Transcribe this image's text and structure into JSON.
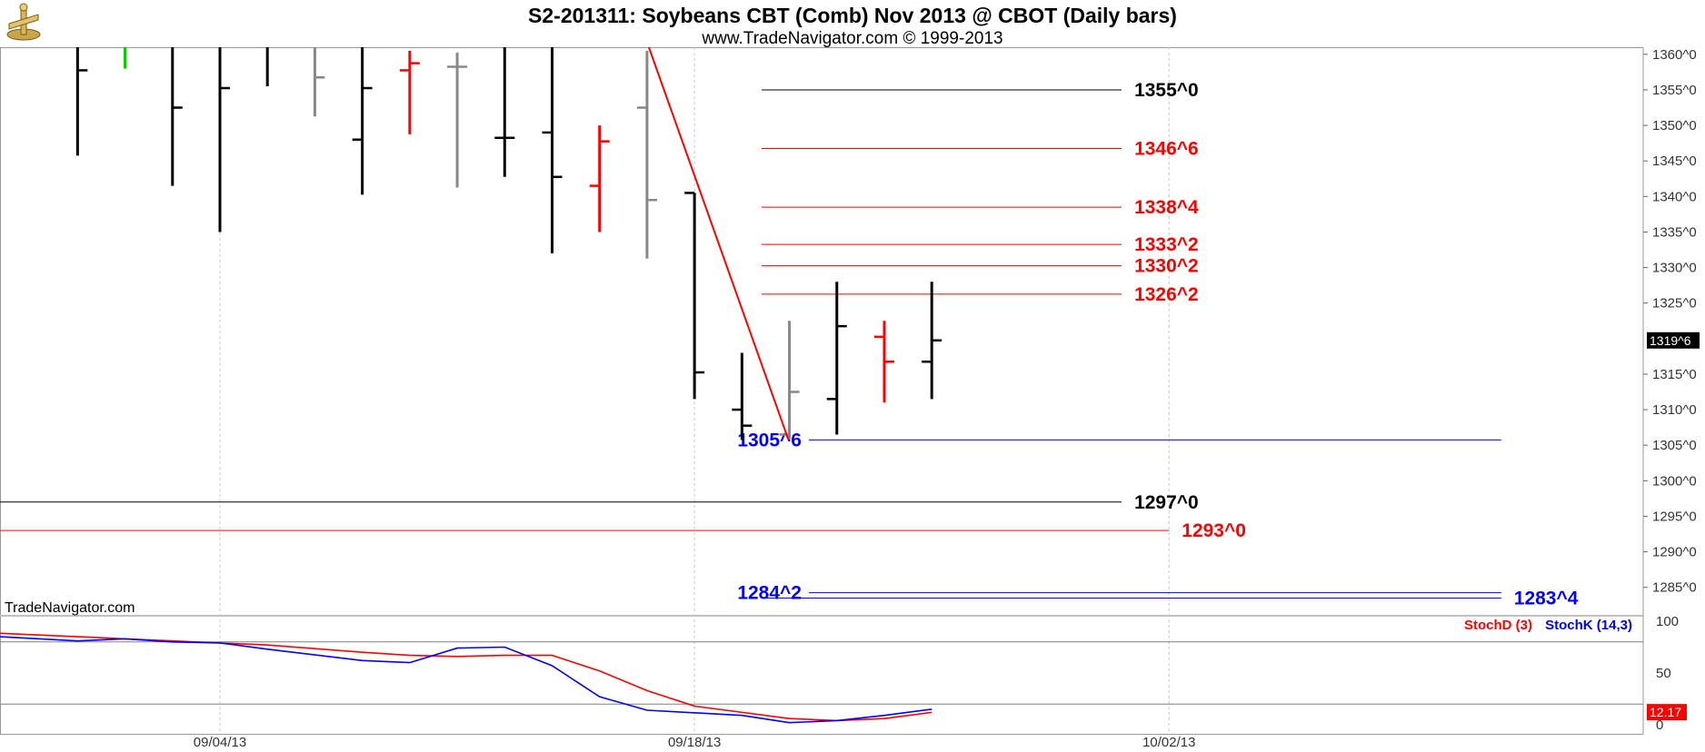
{
  "header": {
    "title": "S2-201311:  Soybeans CBT (Comb) Nov 2013 @ CBOT  (Daily bars)",
    "subtitle": "www.TradeNavigator.com © 1999-2013"
  },
  "watermark": "TradeNavigator.com",
  "chart_data": [
    {
      "type": "ohlc",
      "title": "S2-201311:  Soybeans CBT (Comb) Nov 2013 @ CBOT  (Daily bars)",
      "ylim": [
        1281,
        1361
      ],
      "y_ticks": [
        {
          "v": 1360,
          "label": "1360^0"
        },
        {
          "v": 1355,
          "label": "1355^0"
        },
        {
          "v": 1350,
          "label": "1350^0"
        },
        {
          "v": 1345,
          "label": "1345^0"
        },
        {
          "v": 1340,
          "label": "1340^0"
        },
        {
          "v": 1335,
          "label": "1335^0"
        },
        {
          "v": 1330,
          "label": "1330^0"
        },
        {
          "v": 1325,
          "label": "1325^0"
        },
        {
          "v": 1315,
          "label": "1315^0"
        },
        {
          "v": 1310,
          "label": "1310^0"
        },
        {
          "v": 1305,
          "label": "1305^0"
        },
        {
          "v": 1300,
          "label": "1300^0"
        },
        {
          "v": 1295,
          "label": "1295^0"
        },
        {
          "v": 1290,
          "label": "1290^0"
        },
        {
          "v": 1285,
          "label": "1285^0"
        }
      ],
      "last_price": {
        "v": 1319.75,
        "label": "1319^6"
      },
      "date_ticks": [
        "09/04/13",
        "09/18/13",
        "10/02/13"
      ],
      "grid": true,
      "bars": [
        {
          "date": "08/29/13",
          "open": 1362.0,
          "high": 1364.0,
          "low": 1345.75,
          "close": 1357.75,
          "color": "#000000"
        },
        {
          "date": "08/30/13",
          "open": 1362.0,
          "high": 1362.0,
          "low": 1358.0,
          "close": 1362.0,
          "color": "#00cc00"
        },
        {
          "date": "09/03/13",
          "open": 1368.0,
          "high": 1372.0,
          "low": 1341.5,
          "close": 1352.5,
          "color": "#000000"
        },
        {
          "date": "09/04/13",
          "open": 1362.0,
          "high": 1368.0,
          "low": 1335.0,
          "close": 1355.25,
          "color": "#000000"
        },
        {
          "date": "09/05/13",
          "open": 1362.0,
          "high": 1365.0,
          "low": 1355.5,
          "close": 1362.0,
          "color": "#000000"
        },
        {
          "date": "09/06/13",
          "open": 1362.0,
          "high": 1362.0,
          "low": 1351.25,
          "close": 1356.75,
          "color": "#888888"
        },
        {
          "date": "09/09/13",
          "open": 1348.0,
          "high": 1361.0,
          "low": 1340.25,
          "close": 1355.25,
          "color": "#000000"
        },
        {
          "date": "09/10/13",
          "open": 1357.75,
          "high": 1360.5,
          "low": 1348.75,
          "close": 1358.75,
          "color": "#ff0000"
        },
        {
          "date": "09/11/13",
          "open": 1358.25,
          "high": 1360.25,
          "low": 1341.25,
          "close": 1358.25,
          "color": "#888888"
        },
        {
          "date": "09/12/13",
          "open": 1348.25,
          "high": 1366.0,
          "low": 1342.75,
          "close": 1348.25,
          "color": "#000000"
        },
        {
          "date": "09/13/13",
          "open": 1349.0,
          "high": 1366.0,
          "low": 1332.0,
          "close": 1342.75,
          "color": "#000000"
        },
        {
          "date": "09/16/13",
          "open": 1341.5,
          "high": 1350.0,
          "low": 1335.0,
          "close": 1347.75,
          "color": "#ff0000"
        },
        {
          "date": "09/17/13",
          "open": 1352.5,
          "high": 1360.5,
          "low": 1331.25,
          "close": 1339.5,
          "color": "#888888"
        },
        {
          "date": "09/18/13",
          "open": 1340.5,
          "high": 1340.5,
          "low": 1311.5,
          "close": 1315.25,
          "color": "#000000"
        },
        {
          "date": "09/19/13",
          "open": 1310.0,
          "high": 1318.0,
          "low": 1305.75,
          "close": 1307.75,
          "color": "#000000"
        },
        {
          "date": "09/20/13",
          "open": 1306.5,
          "high": 1322.5,
          "low": 1305.75,
          "close": 1312.5,
          "color": "#888888"
        },
        {
          "date": "09/23/13",
          "open": 1311.5,
          "high": 1328.0,
          "low": 1306.5,
          "close": 1321.75,
          "color": "#000000"
        },
        {
          "date": "09/24/13",
          "open": 1320.25,
          "high": 1322.5,
          "low": 1311.0,
          "close": 1316.75,
          "color": "#ff0000"
        },
        {
          "date": "09/25/13",
          "open": 1316.75,
          "high": 1328.0,
          "low": 1311.5,
          "close": 1319.75,
          "color": "#000000"
        }
      ],
      "levels": [
        {
          "label": "1355^0",
          "v": 1355.0,
          "color": "#000000",
          "x_from": "09/18/13",
          "x_to": "10/01/13",
          "label_side": "right"
        },
        {
          "label": "1346^6",
          "v": 1346.75,
          "color": "#ff0000",
          "x_from": "09/18/13",
          "x_to": "10/01/13",
          "label_side": "right"
        },
        {
          "label": "1338^4",
          "v": 1338.5,
          "color": "#ff0000",
          "x_from": "09/18/13",
          "x_to": "10/01/13",
          "label_side": "right"
        },
        {
          "label": "1333^2",
          "v": 1333.25,
          "color": "#ff0000",
          "x_from": "09/18/13",
          "x_to": "10/01/13",
          "label_side": "right"
        },
        {
          "label": "1330^2",
          "v": 1330.25,
          "color": "#ff0000",
          "x_from": "09/18/13",
          "x_to": "10/01/13",
          "label_side": "right"
        },
        {
          "label": "1326^2",
          "v": 1326.25,
          "color": "#ff0000",
          "x_from": "09/18/13",
          "x_to": "10/01/13",
          "label_side": "right"
        },
        {
          "label": "1305^6",
          "v": 1305.75,
          "color": "#0000ff",
          "x_from": "09/18/13",
          "x_to": "10/11/13",
          "label_side": "left"
        },
        {
          "label": "1297^0",
          "v": 1297.0,
          "color": "#000000",
          "x_from": "08/26/13",
          "x_to": "10/01/13",
          "label_side": "right"
        },
        {
          "label": "1293^0",
          "v": 1293.0,
          "color": "#ff0000",
          "x_from": "08/26/13",
          "x_to": "10/02/13",
          "label_side": "right"
        },
        {
          "label": "1284^2",
          "v": 1284.25,
          "color": "#0000ff",
          "x_from": "09/18/13",
          "x_to": "10/11/13",
          "label_side": "left"
        },
        {
          "label": "1283^4",
          "v": 1283.5,
          "color": "#0000ff",
          "x_from": "09/18/13",
          "x_to": "10/11/13",
          "label_side": "right"
        }
      ],
      "trendline": {
        "color": "#ff0000",
        "from": {
          "date": "09/17/13",
          "v": 1361.0
        },
        "to": {
          "date": "09/20/13",
          "v": 1305.75
        }
      }
    },
    {
      "type": "line",
      "ylim": [
        0,
        100
      ],
      "y_ticks": [
        {
          "v": 100,
          "label": "100"
        },
        {
          "v": 50,
          "label": "50"
        },
        {
          "v": 0,
          "label": "0"
        }
      ],
      "guide_levels": [
        80,
        20
      ],
      "last_value": {
        "v": 12.17,
        "label": "12.17"
      },
      "series": [
        {
          "name": "StochD (3)",
          "color": "#ff0000",
          "points": [
            [
              "08/27/13",
              89
            ],
            [
              "08/29/13",
              85
            ],
            [
              "08/30/13",
              83
            ],
            [
              "09/03/13",
              81
            ],
            [
              "09/05/13",
              77
            ],
            [
              "09/09/13",
              70
            ],
            [
              "09/10/13",
              67
            ],
            [
              "09/11/13",
              66
            ],
            [
              "09/12/13",
              67
            ],
            [
              "09/13/13",
              67
            ],
            [
              "09/16/13",
              52
            ],
            [
              "09/17/13",
              33
            ],
            [
              "09/18/13",
              18
            ],
            [
              "09/20/13",
              6
            ],
            [
              "09/23/13",
              4
            ],
            [
              "09/24/13",
              6
            ],
            [
              "09/25/13",
              12
            ]
          ]
        },
        {
          "name": "StochK (14,3)",
          "color": "#0000ff",
          "points": [
            [
              "08/27/13",
              86
            ],
            [
              "08/29/13",
              81
            ],
            [
              "08/30/13",
              83
            ],
            [
              "09/03/13",
              80
            ],
            [
              "09/04/13",
              79
            ],
            [
              "09/05/13",
              73
            ],
            [
              "09/09/13",
              62
            ],
            [
              "09/10/13",
              60
            ],
            [
              "09/11/13",
              74
            ],
            [
              "09/12/13",
              75
            ],
            [
              "09/13/13",
              57
            ],
            [
              "09/16/13",
              27
            ],
            [
              "09/17/13",
              14
            ],
            [
              "09/19/13",
              9
            ],
            [
              "09/20/13",
              2
            ],
            [
              "09/23/13",
              4
            ],
            [
              "09/24/13",
              9
            ],
            [
              "09/25/13",
              15
            ]
          ]
        }
      ]
    }
  ]
}
